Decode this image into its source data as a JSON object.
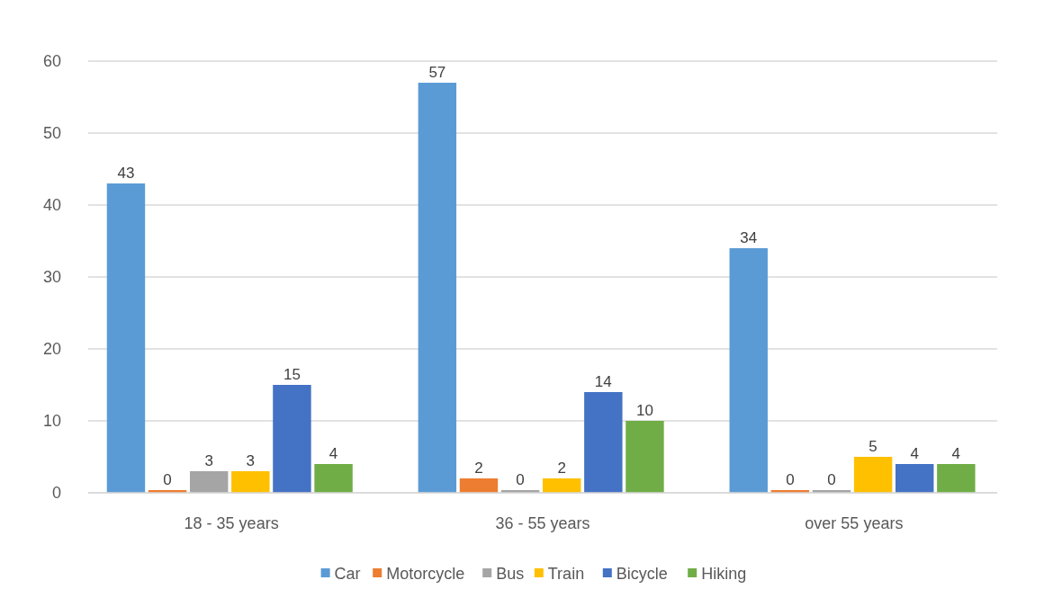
{
  "chart_data": {
    "type": "bar",
    "categories": [
      "18 - 35 years",
      "36 - 55 years",
      "over 55 years"
    ],
    "series": [
      {
        "name": "Car",
        "color": "#5b9bd5",
        "values": [
          43,
          57,
          34
        ]
      },
      {
        "name": "Motorcycle",
        "color": "#ed7d31",
        "values": [
          0,
          2,
          0
        ]
      },
      {
        "name": "Bus",
        "color": "#a5a5a5",
        "values": [
          3,
          0,
          0
        ]
      },
      {
        "name": "Train",
        "color": "#ffc000",
        "values": [
          3,
          2,
          5
        ]
      },
      {
        "name": "Bicycle",
        "color": "#4472c4",
        "values": [
          15,
          14,
          4
        ]
      },
      {
        "name": "Hiking",
        "color": "#70ad47",
        "values": [
          4,
          10,
          4
        ]
      }
    ],
    "ylim": [
      0,
      60
    ],
    "yticks": [
      0,
      10,
      20,
      30,
      40,
      50,
      60
    ],
    "grid": "y",
    "legend": "bottom",
    "data_labels": true
  }
}
